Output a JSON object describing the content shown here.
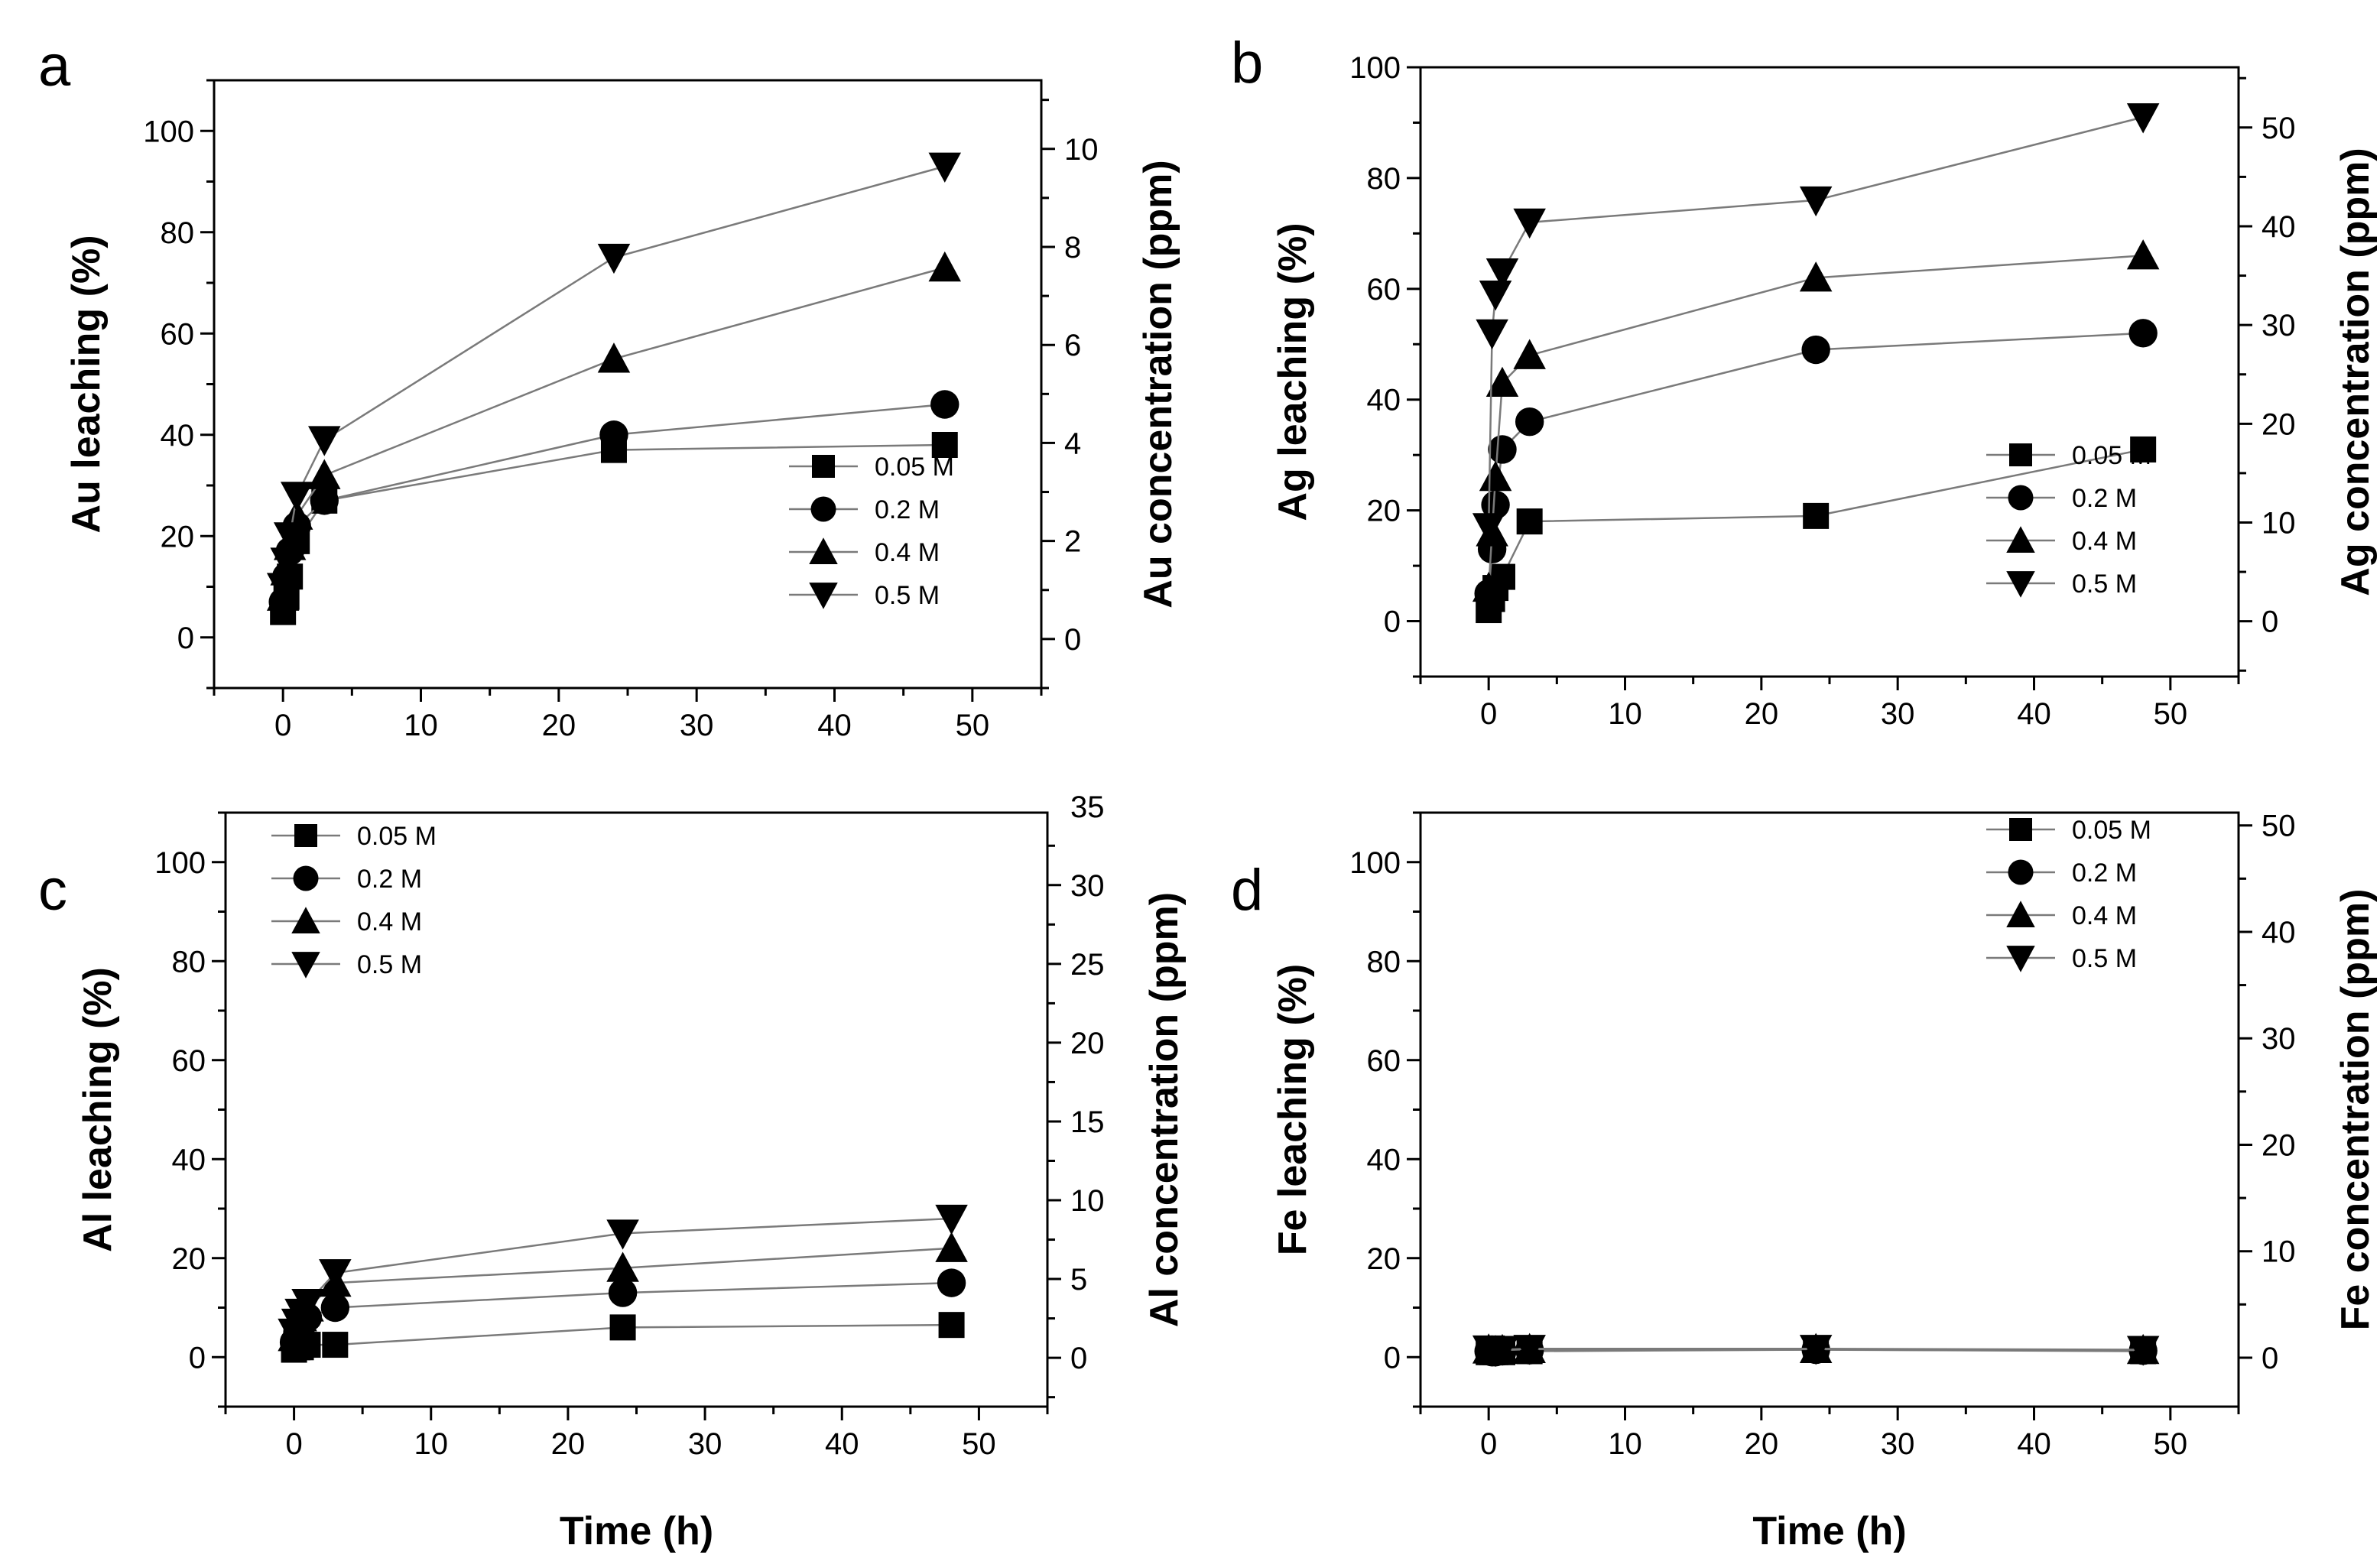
{
  "chart_data": [
    {
      "type": "line",
      "panel_label": "a",
      "xlabel": "",
      "ylabel": "Au leaching (%)",
      "y2label": "Au concentration (ppm)",
      "xlim": [
        -5,
        55
      ],
      "ylim": [
        -10,
        110
      ],
      "y2lim": [
        -1.0,
        11.4
      ],
      "xticks": [
        0,
        10,
        20,
        30,
        40,
        50
      ],
      "yticks": [
        0,
        20,
        40,
        60,
        80,
        100
      ],
      "y2ticks": [
        0,
        2,
        4,
        6,
        8,
        10
      ],
      "legend": {
        "position": "lower-right"
      },
      "x": [
        0,
        0.25,
        0.5,
        1,
        3,
        24,
        48
      ],
      "series": [
        {
          "name": "0.05 M",
          "marker": "square",
          "values": [
            5,
            8,
            12,
            19,
            27,
            37,
            38
          ]
        },
        {
          "name": "0.2 M",
          "marker": "circle",
          "values": [
            7,
            12,
            17,
            22,
            27,
            40,
            46
          ]
        },
        {
          "name": "0.4 M",
          "marker": "triangle-up",
          "values": [
            8,
            13,
            18,
            24,
            32,
            55,
            73
          ]
        },
        {
          "name": "0.5 M",
          "marker": "triangle-down",
          "values": [
            10,
            15,
            20,
            28,
            39,
            75,
            93
          ]
        }
      ]
    },
    {
      "type": "line",
      "panel_label": "b",
      "xlabel": "",
      "ylabel": "Ag leaching (%)",
      "y2label": "Ag concentration (ppm)",
      "xlim": [
        -5,
        55
      ],
      "ylim": [
        -10,
        100
      ],
      "y2lim": [
        -5.6,
        56.1
      ],
      "xticks": [
        0,
        10,
        20,
        30,
        40,
        50
      ],
      "yticks": [
        0,
        20,
        40,
        60,
        80,
        100
      ],
      "y2ticks": [
        0,
        10,
        20,
        30,
        40,
        50
      ],
      "legend": {
        "position": "lower-right"
      },
      "x": [
        0,
        0.25,
        0.5,
        1,
        3,
        24,
        48
      ],
      "series": [
        {
          "name": "0.05 M",
          "marker": "square",
          "values": [
            2,
            4,
            6,
            8,
            18,
            19,
            31
          ]
        },
        {
          "name": "0.2 M",
          "marker": "circle",
          "values": [
            5,
            13,
            21,
            31,
            36,
            49,
            52
          ]
        },
        {
          "name": "0.4 M",
          "marker": "triangle-up",
          "values": [
            6,
            16,
            26,
            43,
            48,
            62,
            66
          ]
        },
        {
          "name": "0.5 M",
          "marker": "triangle-down",
          "values": [
            17,
            52,
            59,
            63,
            72,
            76,
            91
          ]
        }
      ]
    },
    {
      "type": "line",
      "panel_label": "c",
      "xlabel": "Time (h)",
      "ylabel": "Al leaching (%)",
      "y2label": "Al concentration (ppm)",
      "xlim": [
        -5,
        55
      ],
      "ylim": [
        -10,
        110
      ],
      "y2lim": [
        -3.1,
        34.6
      ],
      "xticks": [
        0,
        10,
        20,
        30,
        40,
        50
      ],
      "yticks": [
        0,
        20,
        40,
        60,
        80,
        100
      ],
      "y2ticks": [
        0,
        5,
        10,
        15,
        20,
        25,
        30,
        35
      ],
      "legend": {
        "position": "upper-left"
      },
      "x": [
        0,
        0.25,
        0.5,
        1,
        3,
        24,
        48
      ],
      "series": [
        {
          "name": "0.05 M",
          "marker": "square",
          "values": [
            1.5,
            2,
            2,
            2.5,
            2.5,
            6,
            6.5
          ]
        },
        {
          "name": "0.2 M",
          "marker": "circle",
          "values": [
            3,
            5,
            6,
            8,
            10,
            13,
            15
          ]
        },
        {
          "name": "0.4 M",
          "marker": "triangle-up",
          "values": [
            4,
            6,
            8,
            10,
            15,
            18,
            22
          ]
        },
        {
          "name": "0.5 M",
          "marker": "triangle-down",
          "values": [
            5,
            7,
            9,
            11,
            17,
            25,
            28
          ]
        }
      ]
    },
    {
      "type": "line",
      "panel_label": "d",
      "xlabel": "Time (h)",
      "ylabel": "Fe leaching (%)",
      "y2label": "Fe concentration (ppm)",
      "xlim": [
        -5,
        55
      ],
      "ylim": [
        -10,
        110
      ],
      "y2lim": [
        -4.6,
        51.2
      ],
      "xticks": [
        0,
        10,
        20,
        30,
        40,
        50
      ],
      "yticks": [
        0,
        20,
        40,
        60,
        80,
        100
      ],
      "y2ticks": [
        0,
        10,
        20,
        30,
        40,
        50
      ],
      "legend": {
        "position": "upper-right"
      },
      "x": [
        0,
        0.25,
        0.5,
        1,
        3,
        24,
        48
      ],
      "series": [
        {
          "name": "0.05 M",
          "marker": "square",
          "values": [
            1,
            1,
            1,
            1,
            1.2,
            1.5,
            1.2
          ]
        },
        {
          "name": "0.2 M",
          "marker": "circle",
          "values": [
            1.2,
            1,
            1,
            1.2,
            1.4,
            1.5,
            1.3
          ]
        },
        {
          "name": "0.4 M",
          "marker": "triangle-up",
          "values": [
            1.5,
            1.2,
            1.2,
            1.4,
            1.6,
            1.6,
            1.4
          ]
        },
        {
          "name": "0.5 M",
          "marker": "triangle-down",
          "values": [
            1.6,
            1.4,
            1.3,
            1.5,
            1.7,
            1.7,
            1.5
          ]
        }
      ]
    }
  ]
}
